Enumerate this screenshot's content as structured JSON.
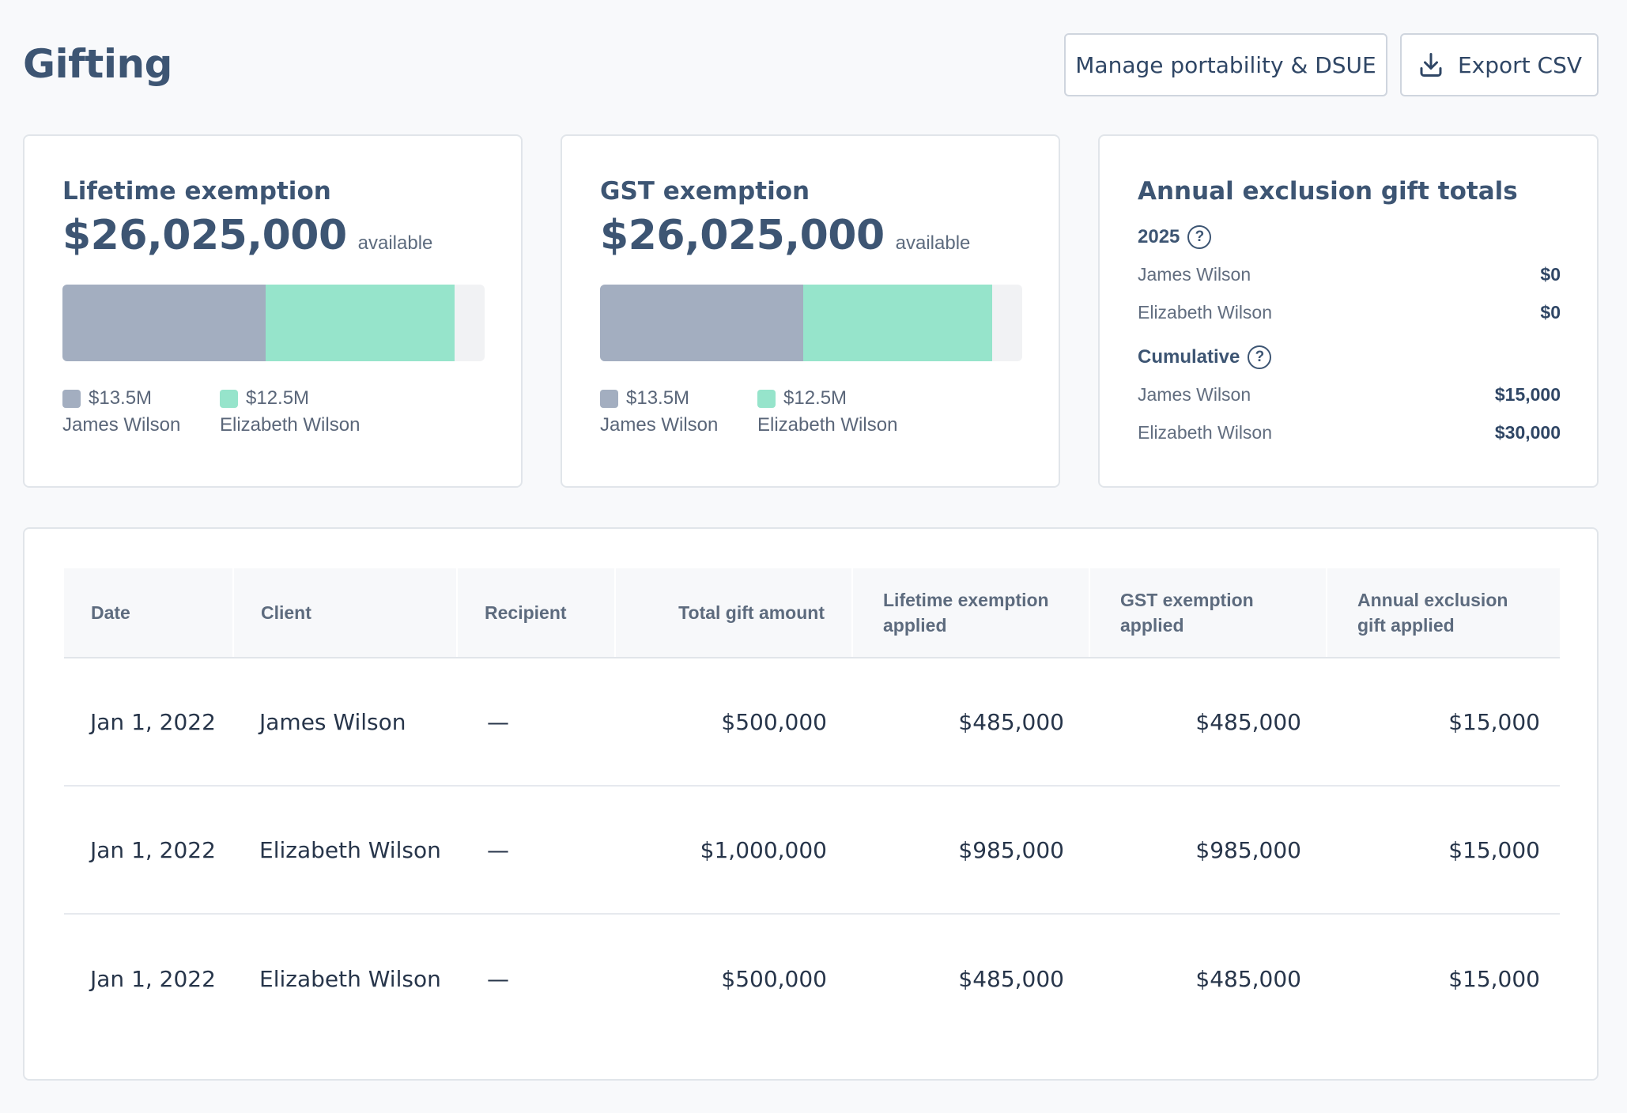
{
  "page": {
    "title": "Gifting"
  },
  "actions": {
    "dsue_label": "Manage portability & DSUE",
    "export_label": "Export CSV"
  },
  "lifetime": {
    "title": "Lifetime exemption",
    "amount": "$26,025,000",
    "amount_suffix": "available",
    "segments": [
      {
        "value_label": "$13.5M",
        "name": "James Wilson",
        "fraction": 0.482,
        "color": "#a3aec0"
      },
      {
        "value_label": "$12.5M",
        "name": "Elizabeth Wilson",
        "fraction": 0.446,
        "color": "#96e4cb"
      }
    ]
  },
  "gst": {
    "title": "GST exemption",
    "amount": "$26,025,000",
    "amount_suffix": "available",
    "segments": [
      {
        "value_label": "$13.5M",
        "name": "James Wilson",
        "fraction": 0.482,
        "color": "#a3aec0"
      },
      {
        "value_label": "$12.5M",
        "name": "Elizabeth Wilson",
        "fraction": 0.446,
        "color": "#96e4cb"
      }
    ]
  },
  "annual": {
    "title": "Annual exclusion gift totals",
    "year_label": "2025",
    "year_rows": [
      {
        "name": "James Wilson",
        "value": "$0"
      },
      {
        "name": "Elizabeth Wilson",
        "value": "$0"
      }
    ],
    "cumulative_label": "Cumulative",
    "cumulative_rows": [
      {
        "name": "James Wilson",
        "value": "$15,000"
      },
      {
        "name": "Elizabeth Wilson",
        "value": "$30,000"
      }
    ]
  },
  "table": {
    "headers": {
      "date": "Date",
      "client": "Client",
      "recipient": "Recipient",
      "total": "Total gift amount",
      "lifetime_1": "Lifetime exemption",
      "lifetime_2": "applied",
      "gst_1": "GST exemption",
      "gst_2": "applied",
      "annual_1": "Annual exclusion",
      "annual_2": "gift applied"
    },
    "rows": [
      {
        "date": "Jan 1, 2022",
        "client": "James Wilson",
        "recipient": "—",
        "total": "$500,000",
        "lifetime": "$485,000",
        "gst": "$485,000",
        "annual": "$15,000"
      },
      {
        "date": "Jan 1, 2022",
        "client": "Elizabeth Wilson",
        "recipient": "—",
        "total": "$1,000,000",
        "lifetime": "$985,000",
        "gst": "$985,000",
        "annual": "$15,000"
      },
      {
        "date": "Jan 1, 2022",
        "client": "Elizabeth Wilson",
        "recipient": "—",
        "total": "$500,000",
        "lifetime": "$485,000",
        "gst": "$485,000",
        "annual": "$15,000"
      }
    ]
  }
}
